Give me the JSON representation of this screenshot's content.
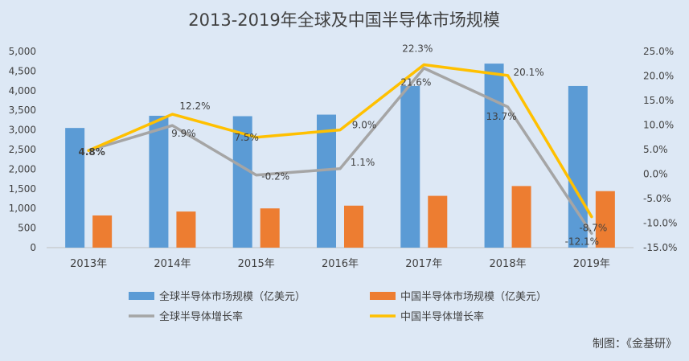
{
  "chart_data": {
    "type": "bar+line",
    "title": "2013-2019年全球及中国半导体市场规模",
    "categories": [
      "2013年",
      "2014年",
      "2015年",
      "2016年",
      "2017年",
      "2018年",
      "2019年"
    ],
    "series": [
      {
        "name": "全球半导体市场规模（亿美元）",
        "kind": "bar",
        "axis": "left",
        "color": "#5b9bd5",
        "values": [
          3050,
          3360,
          3350,
          3390,
          4120,
          4690,
          4120
        ]
      },
      {
        "name": "中国半导体市场规模（亿美元）",
        "kind": "bar",
        "axis": "left",
        "color": "#ed7d31",
        "values": [
          820,
          920,
          1000,
          1070,
          1320,
          1570,
          1440
        ]
      },
      {
        "name": "全球半导体增长率",
        "kind": "line",
        "axis": "right",
        "color": "#a5a5a5",
        "values": [
          4.8,
          9.9,
          -0.2,
          1.1,
          21.6,
          13.7,
          -12.1
        ],
        "labels": [
          "",
          "9.9%",
          "-0.2%",
          "1.1%",
          "21.6%",
          "13.7%",
          "-12.1%"
        ]
      },
      {
        "name": "中国半导体增长率",
        "kind": "line",
        "axis": "right",
        "color": "#ffc000",
        "values": [
          4.8,
          12.2,
          7.5,
          9.0,
          22.3,
          20.1,
          -8.7
        ],
        "labels": [
          "4.8%",
          "12.2%",
          "7.5%",
          "9.0%",
          "22.3%",
          "20.1%",
          "-8.7%"
        ]
      }
    ],
    "y_left": {
      "min": 0,
      "max": 5000,
      "step": 500,
      "ticks": [
        "0",
        "500",
        "1,000",
        "1,500",
        "2,000",
        "2,500",
        "3,000",
        "3,500",
        "4,000",
        "4,500",
        "5,000"
      ]
    },
    "y_right": {
      "min": -15,
      "max": 25,
      "step": 5,
      "ticks": [
        "-15.0%",
        "-10.0%",
        "-5.0%",
        "0.0%",
        "5.0%",
        "10.0%",
        "15.0%",
        "20.0%",
        "25.0%"
      ]
    },
    "legend_position": "bottom",
    "grid": false
  },
  "source": "制图：《金基研》",
  "colors": {
    "background": "#dde8f5",
    "text": "#404040",
    "axis": "#bfbfbf"
  }
}
